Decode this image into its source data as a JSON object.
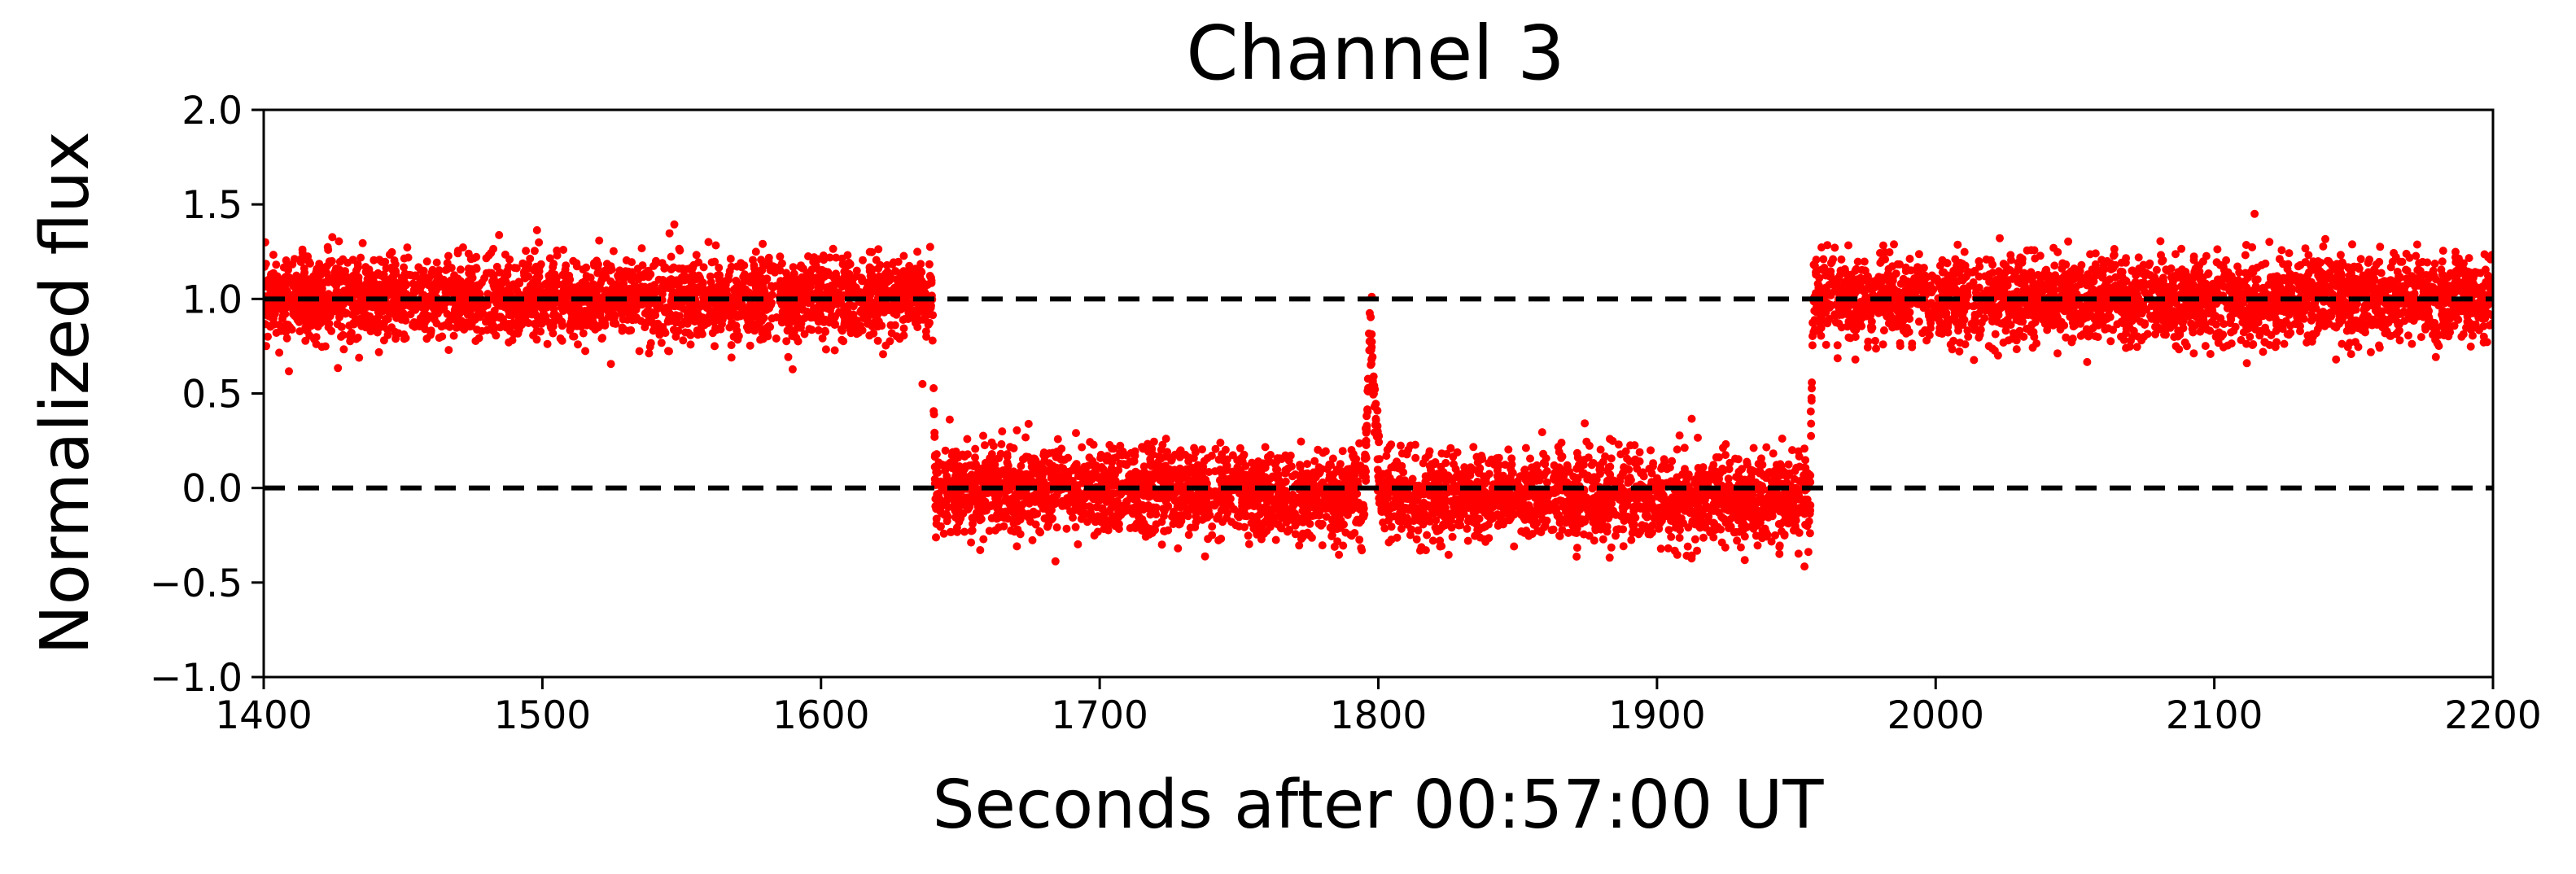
{
  "chart_data": {
    "type": "scatter",
    "title": "Channel 3",
    "xlabel": "Seconds after 00:57:00 UT",
    "ylabel": "Normalized flux",
    "xlim": [
      1400,
      2200
    ],
    "ylim": [
      -1.0,
      2.0
    ],
    "x_ticks": [
      1400,
      1500,
      1600,
      1700,
      1800,
      1900,
      2000,
      2100,
      2200
    ],
    "x_tick_labels": [
      "1400",
      "1500",
      "1600",
      "1700",
      "1800",
      "1900",
      "2000",
      "2100",
      "2200"
    ],
    "y_ticks": [
      -1.0,
      -0.5,
      0.0,
      0.5,
      1.0,
      1.5,
      2.0
    ],
    "y_tick_labels": [
      "−1.0",
      "−0.5",
      "0.0",
      "0.5",
      "1.0",
      "1.5",
      "2.0"
    ],
    "grid": false,
    "marker_color": "#ff0000",
    "reference_lines": [
      {
        "y": 1.0,
        "style": "dashed",
        "color": "#000000"
      },
      {
        "y": 0.0,
        "style": "dashed",
        "color": "#000000"
      }
    ],
    "series": [
      {
        "x": [
          1400,
          1640,
          1641,
          1795,
          1797,
          1799,
          1801,
          1955,
          1956,
          2200
        ],
        "y": [
          1.0,
          1.0,
          0.0,
          -0.05,
          0.9,
          0.4,
          -0.05,
          -0.05,
          1.0,
          1.0
        ]
      }
    ]
  }
}
